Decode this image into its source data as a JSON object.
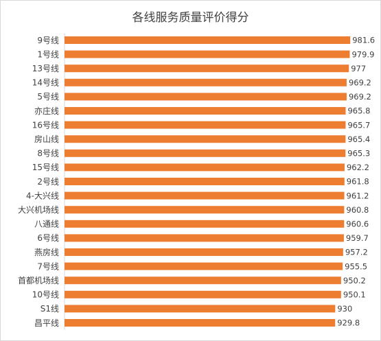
{
  "chart_data": {
    "type": "bar",
    "orientation": "horizontal",
    "title": "各线服务质量评价得分",
    "xlabel": "",
    "ylabel": "",
    "categories": [
      "9号线",
      "1号线",
      "13号线",
      "14号线",
      "5号线",
      "亦庄线",
      "16号线",
      "房山线",
      "8号线",
      "15号线",
      "2号线",
      "4-大兴线",
      "大兴机场线",
      "八通线",
      "6号线",
      "燕房线",
      "7号线",
      "首都机场线",
      "10号线",
      "S1线",
      "昌平线"
    ],
    "values": [
      981.6,
      979.9,
      977,
      969.2,
      969.2,
      965.8,
      965.7,
      965.4,
      965.3,
      962.2,
      961.8,
      961.2,
      960.8,
      960.6,
      959.7,
      957.2,
      955.5,
      950.2,
      950.1,
      930,
      929.8
    ],
    "value_labels": [
      "981.6",
      "979.9",
      "977",
      "969.2",
      "969.2",
      "965.8",
      "965.7",
      "965.4",
      "965.3",
      "962.2",
      "961.8",
      "961.2",
      "960.8",
      "960.6",
      "959.7",
      "957.2",
      "955.5",
      "950.2",
      "950.1",
      "930",
      "929.8"
    ],
    "xlim": [
      0,
      1000
    ],
    "grid": false,
    "legend": "none",
    "bar_color": "#ED7D31"
  }
}
